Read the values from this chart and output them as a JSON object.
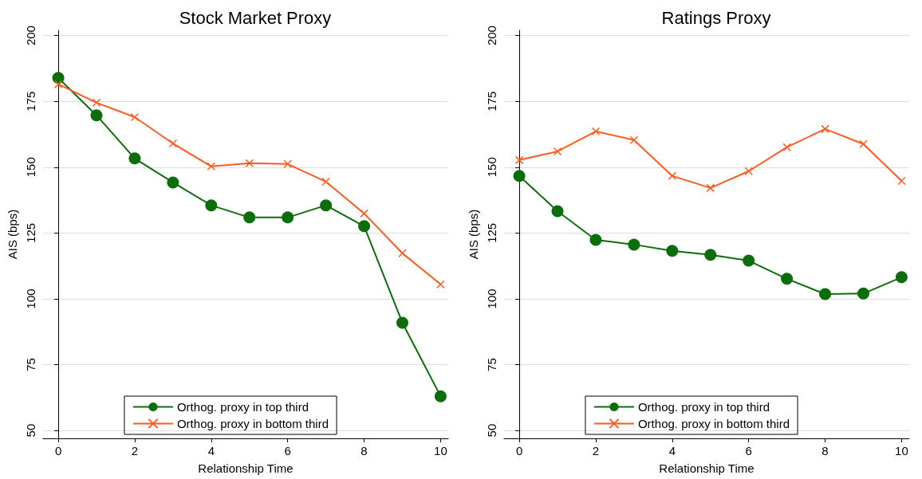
{
  "chart_data": [
    {
      "type": "line",
      "title": "Stock Market Proxy",
      "xlabel": "Relationship Time",
      "ylabel": "AIS (bps)",
      "x": [
        0,
        1,
        2,
        3,
        4,
        5,
        6,
        7,
        8,
        9,
        10
      ],
      "series": [
        {
          "name": "Orthog. proxy in top third",
          "color": "#0b6e0b",
          "marker": "circle",
          "values": [
            183.9,
            169.7,
            153.3,
            144.2,
            135.5,
            130.9,
            130.9,
            135.5,
            127.6,
            90.9,
            63
          ]
        },
        {
          "name": "Orthog. proxy in bottom third",
          "color": "#ff5a1f",
          "marker": "cross",
          "values": [
            181.5,
            174.5,
            169,
            159,
            150.3,
            151.5,
            151.2,
            144.5,
            132.4,
            117.3,
            105.5
          ]
        }
      ],
      "xlim": [
        -0.4,
        10.2
      ],
      "xticks": [
        0,
        2,
        4,
        6,
        8,
        10
      ],
      "ylim": [
        47,
        202
      ],
      "yticks": [
        50,
        75,
        100,
        125,
        150,
        175,
        200
      ],
      "grid": "y",
      "legend": "bottom"
    },
    {
      "type": "line",
      "title": "Ratings Proxy",
      "xlabel": "Relationship Time",
      "ylabel": "AIS (bps)",
      "x": [
        0,
        1,
        2,
        3,
        4,
        5,
        6,
        7,
        8,
        9,
        10
      ],
      "series": [
        {
          "name": "Orthog. proxy in top third",
          "color": "#0b6e0b",
          "marker": "circle",
          "values": [
            146.7,
            133.3,
            122.4,
            120.6,
            118.2,
            116.7,
            114.5,
            107.6,
            101.8,
            102,
            108.2
          ]
        },
        {
          "name": "Orthog. proxy in bottom third",
          "color": "#ff5a1f",
          "marker": "cross",
          "values": [
            152.7,
            156,
            163.6,
            160.3,
            146.7,
            142.1,
            148.5,
            157.6,
            164.5,
            158.8,
            144.8
          ]
        }
      ],
      "xlim": [
        -0.4,
        10.2
      ],
      "xticks": [
        0,
        2,
        4,
        6,
        8,
        10
      ],
      "ylim": [
        47,
        202
      ],
      "yticks": [
        50,
        75,
        100,
        125,
        150,
        175,
        200
      ],
      "grid": "y",
      "legend": "bottom"
    }
  ]
}
